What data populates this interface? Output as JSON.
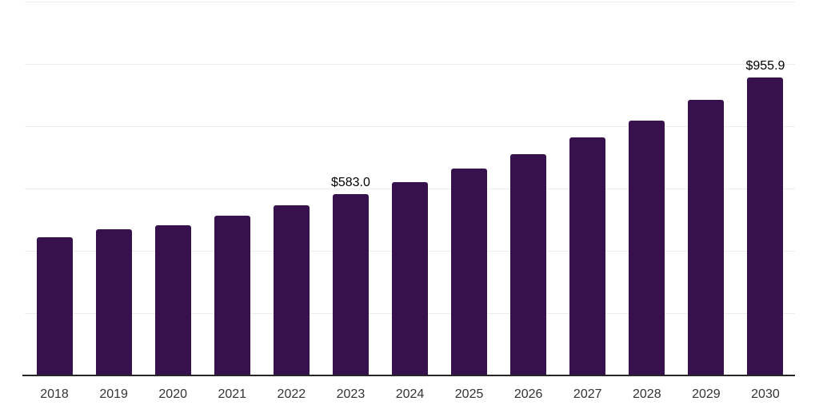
{
  "chart_data": {
    "type": "bar",
    "title": "",
    "xlabel": "",
    "ylabel": "",
    "categories": [
      "2018",
      "2019",
      "2020",
      "2021",
      "2022",
      "2023",
      "2024",
      "2025",
      "2026",
      "2027",
      "2028",
      "2029",
      "2030"
    ],
    "values": [
      442.7,
      470.0,
      482.8,
      512.6,
      545.8,
      583.0,
      619.9,
      664.1,
      710.9,
      763.7,
      817.4,
      883.8,
      955.9
    ],
    "data_labels": {
      "2023": "$583.0",
      "2030": "$955.9"
    },
    "ylim": [
      0,
      1200
    ],
    "gridline_step": 200,
    "grid": "horizontal-only",
    "legend": "none",
    "y_axis_tick_labels_visible": false,
    "colors": {
      "bar": "#36114d",
      "gridline": "#ededed",
      "axis_line": "#262626",
      "x_tick_label": "#333333",
      "data_label": "#000000",
      "background": "#ffffff"
    }
  }
}
